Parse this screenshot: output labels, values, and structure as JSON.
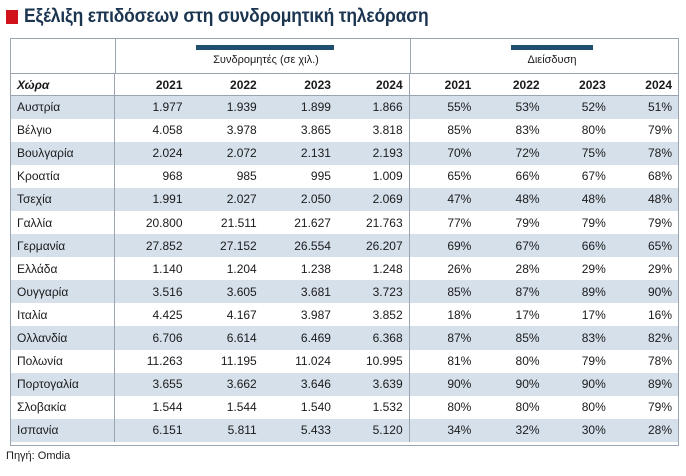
{
  "title": "Εξέλιξη επιδόσεων στη συνδρομητική τηλεόραση",
  "groups": {
    "subscribers": "Συνδρομητές (σε χιλ.)",
    "penetration": "Διείσδυση"
  },
  "header": {
    "country": "Χώρα",
    "years": [
      "2021",
      "2022",
      "2023",
      "2024",
      "2021",
      "2022",
      "2023",
      "2024"
    ]
  },
  "rows": [
    {
      "country": "Αυστρία",
      "subs": [
        "1.977",
        "1.939",
        "1.899",
        "1.866"
      ],
      "pen": [
        "55%",
        "53%",
        "52%",
        "51%"
      ]
    },
    {
      "country": "Βέλγιο",
      "subs": [
        "4.058",
        "3.978",
        "3.865",
        "3.818"
      ],
      "pen": [
        "85%",
        "83%",
        "80%",
        "79%"
      ]
    },
    {
      "country": "Βουλγαρία",
      "subs": [
        "2.024",
        "2.072",
        "2.131",
        "2.193"
      ],
      "pen": [
        "70%",
        "72%",
        "75%",
        "78%"
      ]
    },
    {
      "country": "Κροατία",
      "subs": [
        "968",
        "985",
        "995",
        "1.009"
      ],
      "pen": [
        "65%",
        "66%",
        "67%",
        "68%"
      ]
    },
    {
      "country": "Τσεχία",
      "subs": [
        "1.991",
        "2.027",
        "2.050",
        "2.069"
      ],
      "pen": [
        "47%",
        "48%",
        "48%",
        "48%"
      ]
    },
    {
      "country": "Γαλλία",
      "subs": [
        "20.800",
        "21.511",
        "21.627",
        "21.763"
      ],
      "pen": [
        "77%",
        "79%",
        "79%",
        "79%"
      ]
    },
    {
      "country": "Γερμανία",
      "subs": [
        "27.852",
        "27.152",
        "26.554",
        "26.207"
      ],
      "pen": [
        "69%",
        "67%",
        "66%",
        "65%"
      ]
    },
    {
      "country": "Ελλάδα",
      "subs": [
        "1.140",
        "1.204",
        "1.238",
        "1.248"
      ],
      "pen": [
        "26%",
        "28%",
        "29%",
        "29%"
      ]
    },
    {
      "country": "Ουγγαρία",
      "subs": [
        "3.516",
        "3.605",
        "3.681",
        "3.723"
      ],
      "pen": [
        "85%",
        "87%",
        "89%",
        "90%"
      ]
    },
    {
      "country": "Ιταλία",
      "subs": [
        "4.425",
        "4.167",
        "3.987",
        "3.852"
      ],
      "pen": [
        "18%",
        "17%",
        "17%",
        "16%"
      ]
    },
    {
      "country": "Ολλανδία",
      "subs": [
        "6.706",
        "6.614",
        "6.469",
        "6.368"
      ],
      "pen": [
        "87%",
        "85%",
        "83%",
        "82%"
      ]
    },
    {
      "country": "Πολωνία",
      "subs": [
        "11.263",
        "11.195",
        "11.024",
        "10.995"
      ],
      "pen": [
        "81%",
        "80%",
        "79%",
        "78%"
      ]
    },
    {
      "country": "Πορτογαλία",
      "subs": [
        "3.655",
        "3.662",
        "3.646",
        "3.639"
      ],
      "pen": [
        "90%",
        "90%",
        "90%",
        "89%"
      ]
    },
    {
      "country": "Σλοβακία",
      "subs": [
        "1.544",
        "1.544",
        "1.540",
        "1.532"
      ],
      "pen": [
        "80%",
        "80%",
        "80%",
        "79%"
      ]
    },
    {
      "country": "Ισπανία",
      "subs": [
        "6.151",
        "5.811",
        "5.433",
        "5.120"
      ],
      "pen": [
        "34%",
        "32%",
        "30%",
        "28%"
      ]
    }
  ],
  "source": "Πηγή: Omdia",
  "colors": {
    "accent_red": "#d0121b",
    "title_navy": "#1b3550",
    "group_bar": "#1f4e6e",
    "row_stripe": "#d5e0eb"
  }
}
